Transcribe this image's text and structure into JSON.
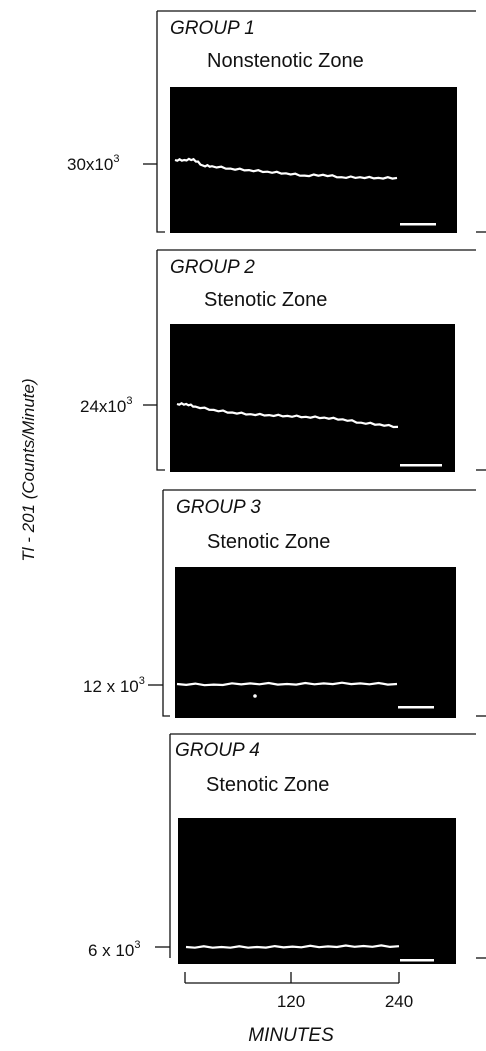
{
  "y_axis_label": "Tl - 201 (Counts/Minute)",
  "x_axis_label": "MINUTES",
  "trace_color": "#ffffff",
  "screen_color": "#000000",
  "chart_data": [
    {
      "type": "line",
      "group": "GROUP 1",
      "zone": "Nonstenotic Zone",
      "y_tick_base": "30x10",
      "y_tick_exp": "3",
      "x": [
        0,
        10,
        20,
        30,
        40,
        60,
        80,
        100,
        120,
        140,
        160,
        180,
        200,
        220,
        240
      ],
      "values": [
        30000,
        30000,
        30100,
        29300,
        29200,
        28900,
        28700,
        28500,
        28300,
        28000,
        28100,
        27800,
        27800,
        27700,
        27700
      ]
    },
    {
      "type": "line",
      "group": "GROUP 2",
      "zone": "Stenotic Zone",
      "y_tick_base": "24x10",
      "y_tick_exp": "3",
      "x": [
        0,
        10,
        20,
        40,
        60,
        80,
        100,
        120,
        140,
        160,
        180,
        200,
        220,
        240
      ],
      "values": [
        24000,
        24000,
        23700,
        23300,
        23000,
        22800,
        22700,
        22600,
        22500,
        22400,
        22200,
        21800,
        21600,
        21300
      ]
    },
    {
      "type": "line",
      "group": "GROUP 3",
      "zone": "Stenotic Zone",
      "y_tick_base": "12 x 10",
      "y_tick_exp": "3",
      "x": [
        0,
        40,
        80,
        120,
        160,
        200,
        240
      ],
      "values": [
        12000,
        11950,
        12050,
        12000,
        12050,
        12050,
        12000
      ]
    },
    {
      "type": "line",
      "group": "GROUP 4",
      "zone": "Stenotic Zone",
      "y_tick_base": "6 x 10",
      "y_tick_exp": "3",
      "x": [
        0,
        40,
        80,
        120,
        160,
        200,
        240
      ],
      "values": [
        6000,
        6000,
        6000,
        6020,
        6030,
        6050,
        6040
      ]
    }
  ],
  "x_ticks": [
    "120",
    "240"
  ],
  "x_tick_values": [
    120,
    240
  ]
}
